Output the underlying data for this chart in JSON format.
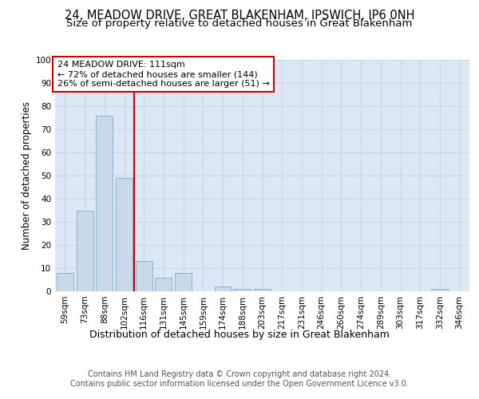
{
  "title1": "24, MEADOW DRIVE, GREAT BLAKENHAM, IPSWICH, IP6 0NH",
  "title2": "Size of property relative to detached houses in Great Blakenham",
  "xlabel": "Distribution of detached houses by size in Great Blakenham",
  "ylabel": "Number of detached properties",
  "footer1": "Contains HM Land Registry data © Crown copyright and database right 2024.",
  "footer2": "Contains public sector information licensed under the Open Government Licence v3.0.",
  "bar_labels": [
    "59sqm",
    "73sqm",
    "88sqm",
    "102sqm",
    "116sqm",
    "131sqm",
    "145sqm",
    "159sqm",
    "174sqm",
    "188sqm",
    "203sqm",
    "217sqm",
    "231sqm",
    "246sqm",
    "260sqm",
    "274sqm",
    "289sqm",
    "303sqm",
    "317sqm",
    "332sqm",
    "346sqm"
  ],
  "bar_values": [
    8,
    35,
    76,
    49,
    13,
    6,
    8,
    0,
    2,
    1,
    1,
    0,
    0,
    0,
    0,
    0,
    0,
    0,
    0,
    1,
    0
  ],
  "bar_color": "#c9d9ea",
  "bar_edgecolor": "#8ab4d4",
  "vline_x": 3.5,
  "vline_color": "#cc0000",
  "annotation_line1": "24 MEADOW DRIVE: 111sqm",
  "annotation_line2": "← 72% of detached houses are smaller (144)",
  "annotation_line3": "26% of semi-detached houses are larger (51) →",
  "annotation_box_edgecolor": "#cc0000",
  "annotation_box_facecolor": "#ffffff",
  "ylim": [
    0,
    100
  ],
  "yticks": [
    0,
    10,
    20,
    30,
    40,
    50,
    60,
    70,
    80,
    90,
    100
  ],
  "grid_color": "#c8d8e8",
  "bg_color": "#dce8f4",
  "title1_fontsize": 10.5,
  "title2_fontsize": 9.5,
  "xlabel_fontsize": 9,
  "ylabel_fontsize": 8.5,
  "tick_fontsize": 7.5,
  "annot_fontsize": 8,
  "footer_fontsize": 7
}
